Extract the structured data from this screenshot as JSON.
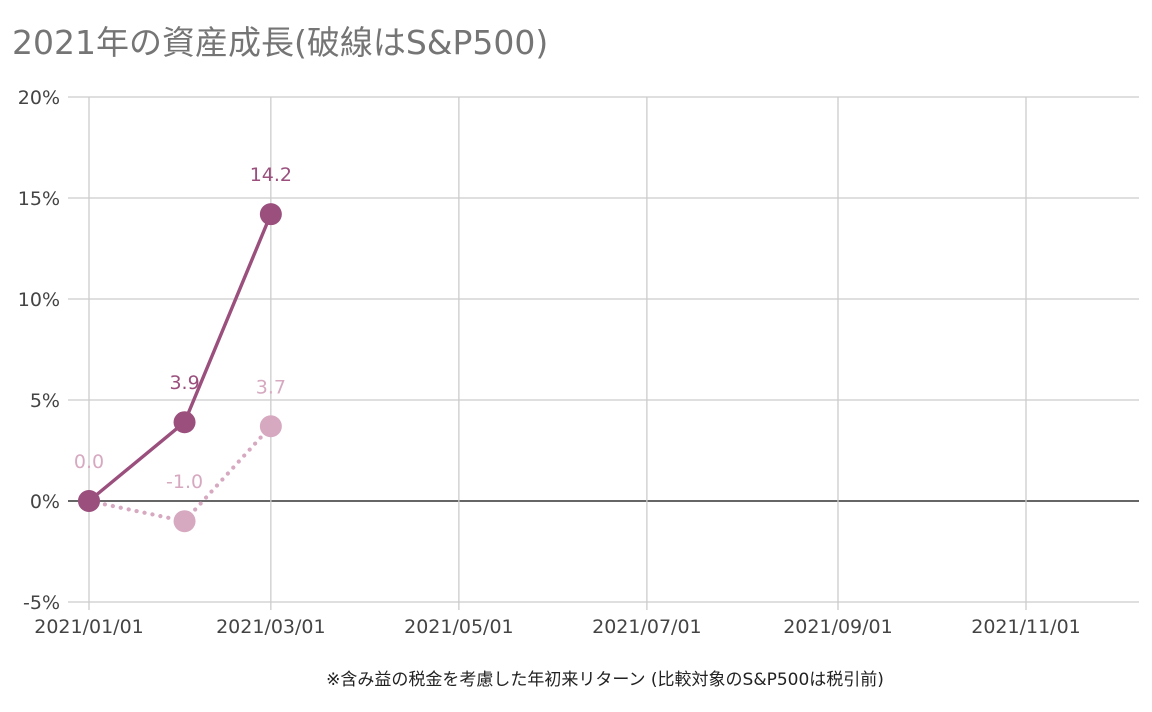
{
  "chart_data": {
    "type": "line",
    "title": "2021年の資産成長(破線はS&P500)",
    "xlabel": "※含み益の税金を考慮した年初来リターン (比較対象のS&P500は税引前)",
    "ylabel": "",
    "x_tick_labels": [
      "2021/01/01",
      "2021/03/01",
      "2021/05/01",
      "2021/07/01",
      "2021/09/01",
      "2021/11/01"
    ],
    "x_range": [
      "2021-01-01",
      "2021-12-15"
    ],
    "y_tick_labels": [
      "20%",
      "15%",
      "10%",
      "5%",
      "0%",
      "-5%"
    ],
    "y_ticks": [
      20,
      15,
      10,
      5,
      0,
      -5
    ],
    "ylim": [
      -5,
      20
    ],
    "grid": true,
    "series": [
      {
        "style": "solid",
        "color": "#9a4f7d",
        "x": [
          "2021-01-01",
          "2021-02-01",
          "2021-03-01"
        ],
        "values": [
          0.0,
          3.9,
          14.2
        ],
        "labels": [
          "",
          "3.9",
          "14.2"
        ]
      },
      {
        "style": "dotted",
        "color": "#d6a9c1",
        "x": [
          "2021-01-01",
          "2021-02-01",
          "2021-03-01"
        ],
        "values": [
          0.0,
          -1.0,
          3.7
        ],
        "labels": [
          "0.0",
          "-1.0",
          "3.7"
        ]
      }
    ]
  }
}
